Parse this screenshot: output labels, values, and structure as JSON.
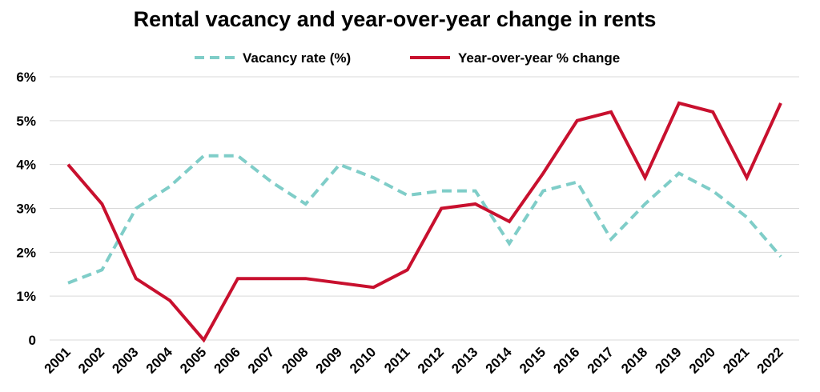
{
  "chart_data": {
    "type": "line",
    "title": "Rental vacancy and year-over-year change in rents",
    "xlabel": "",
    "ylabel": "",
    "categories": [
      "2001",
      "2002",
      "2003",
      "2004",
      "2005",
      "2006",
      "2007",
      "2008",
      "2009",
      "2010",
      "2011",
      "2012",
      "2013",
      "2014",
      "2015",
      "2016",
      "2017",
      "2018",
      "2019",
      "2020",
      "2021",
      "2022"
    ],
    "ylim": [
      0,
      6
    ],
    "y_ticks": [
      {
        "value": 0,
        "label": "0"
      },
      {
        "value": 1,
        "label": "1%"
      },
      {
        "value": 2,
        "label": "2%"
      },
      {
        "value": 3,
        "label": "3%"
      },
      {
        "value": 4,
        "label": "4%"
      },
      {
        "value": 5,
        "label": "5%"
      },
      {
        "value": 6,
        "label": "6%"
      }
    ],
    "grid": true,
    "legend_position": "top",
    "series": [
      {
        "name": "Vacancy rate (%)",
        "color": "#7fcdc8",
        "style": "dashed",
        "values": [
          1.3,
          1.6,
          3.0,
          3.5,
          4.2,
          4.2,
          3.6,
          3.1,
          4.0,
          3.7,
          3.3,
          3.4,
          3.4,
          2.2,
          3.4,
          3.6,
          2.3,
          3.1,
          3.8,
          3.4,
          2.8,
          1.9
        ]
      },
      {
        "name": "Year-over-year % change",
        "color": "#c8102e",
        "style": "solid",
        "values": [
          4.0,
          3.1,
          1.4,
          0.9,
          0.0,
          1.4,
          1.4,
          1.4,
          1.3,
          1.2,
          1.6,
          3.0,
          3.1,
          2.7,
          3.8,
          5.0,
          5.2,
          3.7,
          5.4,
          5.2,
          3.7,
          5.4
        ]
      }
    ]
  }
}
